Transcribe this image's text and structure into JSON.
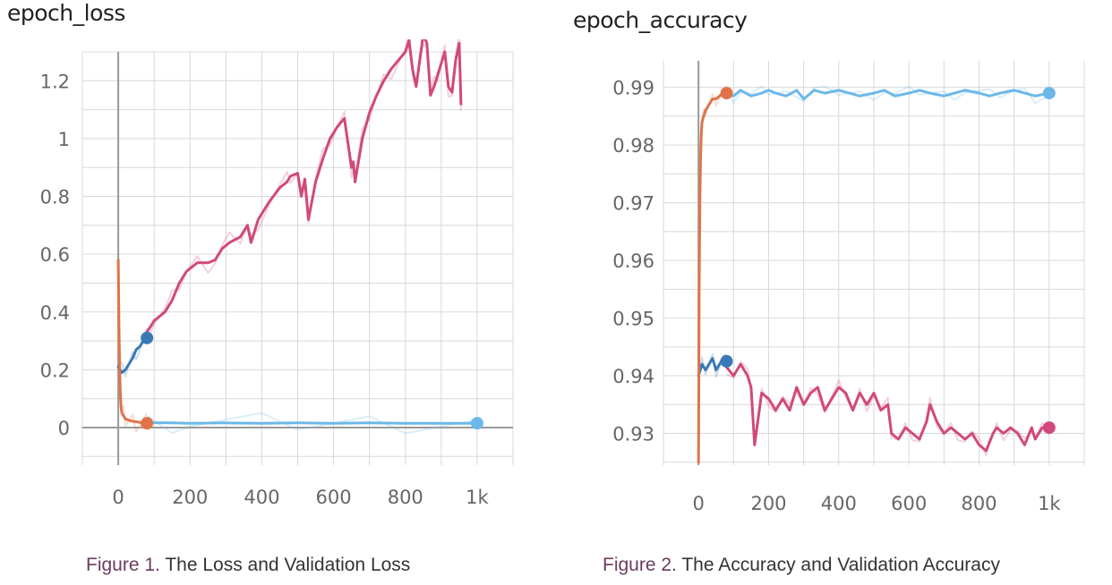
{
  "chart_data": [
    {
      "type": "line",
      "title": "epoch_loss",
      "caption_label": "Figure 1.",
      "caption_text": "The Loss and Validation Loss",
      "xlim": [
        -100,
        1100
      ],
      "ylim": [
        -0.13,
        1.3
      ],
      "x_ticks": [
        0,
        200,
        400,
        600,
        800,
        1000
      ],
      "x_tick_labels": [
        "0",
        "200",
        "400",
        "600",
        "800",
        "1k"
      ],
      "y_ticks": [
        0,
        0.2,
        0.4,
        0.6,
        0.8,
        1,
        1.2
      ],
      "y_tick_labels": [
        "0",
        "0.2",
        "0.4",
        "0.6",
        "0.8",
        "1",
        "1.2"
      ],
      "grid": true,
      "series": [
        {
          "color": "#d1497a",
          "end_marker": false,
          "x": [
            80,
            100,
            130,
            150,
            170,
            190,
            220,
            250,
            270,
            290,
            310,
            340,
            360,
            370,
            390,
            420,
            450,
            470,
            480,
            500,
            510,
            520,
            530,
            550,
            570,
            590,
            610,
            630,
            650,
            655,
            660,
            680,
            700,
            720,
            740,
            760,
            780,
            800,
            810,
            820,
            830,
            840,
            850,
            860,
            870,
            880,
            890,
            900,
            910,
            920,
            930,
            940,
            950,
            955
          ],
          "values": [
            0.33,
            0.37,
            0.4,
            0.44,
            0.5,
            0.54,
            0.57,
            0.57,
            0.58,
            0.62,
            0.64,
            0.66,
            0.7,
            0.64,
            0.72,
            0.78,
            0.83,
            0.85,
            0.87,
            0.88,
            0.8,
            0.86,
            0.72,
            0.85,
            0.93,
            1.0,
            1.04,
            1.07,
            0.9,
            0.92,
            0.85,
            1.0,
            1.09,
            1.15,
            1.2,
            1.24,
            1.27,
            1.3,
            1.34,
            1.24,
            1.18,
            1.27,
            1.36,
            1.33,
            1.15,
            1.18,
            1.22,
            1.26,
            1.3,
            1.18,
            1.16,
            1.27,
            1.33,
            1.12
          ]
        },
        {
          "color": "#3a78b6",
          "end_marker": true,
          "x": [
            0,
            10,
            20,
            30,
            40,
            50,
            60,
            70,
            80
          ],
          "values": [
            0.21,
            0.19,
            0.2,
            0.22,
            0.24,
            0.27,
            0.28,
            0.3,
            0.31
          ]
        },
        {
          "color": "#e0734a",
          "end_marker": true,
          "x": [
            0,
            2,
            4,
            6,
            8,
            10,
            15,
            20,
            30,
            40,
            50,
            60,
            70,
            80
          ],
          "values": [
            0.58,
            0.35,
            0.2,
            0.11,
            0.07,
            0.05,
            0.04,
            0.03,
            0.025,
            0.022,
            0.02,
            0.018,
            0.016,
            0.015
          ]
        },
        {
          "color": "#6cb8e8",
          "end_marker": true,
          "x": [
            80,
            150,
            200,
            300,
            400,
            500,
            600,
            700,
            800,
            900,
            1000
          ],
          "values": [
            0.017,
            0.016,
            0.015,
            0.016,
            0.015,
            0.016,
            0.015,
            0.016,
            0.015,
            0.015,
            0.015
          ]
        }
      ]
    },
    {
      "type": "line",
      "title": "epoch_accuracy",
      "caption_label": "Figure 2.",
      "caption_text": "The Accuracy and Validation Accuracy",
      "xlim": [
        -100,
        1100
      ],
      "ylim": [
        0.9245,
        0.9946
      ],
      "x_ticks": [
        0,
        200,
        400,
        600,
        800,
        1000
      ],
      "x_tick_labels": [
        "0",
        "200",
        "400",
        "600",
        "800",
        "1k"
      ],
      "y_ticks": [
        0.93,
        0.94,
        0.95,
        0.96,
        0.97,
        0.98,
        0.99
      ],
      "y_tick_labels": [
        "0.93",
        "0.94",
        "0.95",
        "0.96",
        "0.97",
        "0.98",
        "0.99"
      ],
      "grid": true,
      "series": [
        {
          "color": "#d1497a",
          "end_marker": true,
          "x": [
            80,
            100,
            120,
            140,
            150,
            160,
            180,
            200,
            220,
            240,
            260,
            280,
            300,
            320,
            340,
            360,
            380,
            400,
            420,
            440,
            460,
            480,
            500,
            520,
            540,
            550,
            570,
            590,
            610,
            630,
            650,
            660,
            680,
            700,
            720,
            740,
            760,
            780,
            800,
            820,
            840,
            850,
            870,
            890,
            910,
            930,
            950,
            960,
            980,
            1000
          ],
          "values": [
            0.9415,
            0.94,
            0.942,
            0.94,
            0.938,
            0.928,
            0.937,
            0.936,
            0.934,
            0.936,
            0.934,
            0.938,
            0.935,
            0.937,
            0.938,
            0.934,
            0.936,
            0.938,
            0.937,
            0.934,
            0.937,
            0.935,
            0.937,
            0.934,
            0.935,
            0.93,
            0.929,
            0.931,
            0.93,
            0.929,
            0.932,
            0.935,
            0.932,
            0.93,
            0.931,
            0.93,
            0.929,
            0.93,
            0.928,
            0.927,
            0.93,
            0.931,
            0.93,
            0.931,
            0.93,
            0.928,
            0.931,
            0.929,
            0.931,
            0.931
          ]
        },
        {
          "color": "#3a78b6",
          "end_marker": true,
          "x": [
            0,
            10,
            20,
            30,
            40,
            50,
            60,
            70,
            80
          ],
          "values": [
            0.94,
            0.942,
            0.941,
            0.942,
            0.943,
            0.941,
            0.942,
            0.943,
            0.9425
          ]
        },
        {
          "color": "#e0734a",
          "end_marker": true,
          "x": [
            0,
            2,
            4,
            6,
            8,
            10,
            15,
            20,
            30,
            40,
            50,
            60,
            70,
            80
          ],
          "values": [
            0.925,
            0.955,
            0.97,
            0.978,
            0.982,
            0.984,
            0.985,
            0.986,
            0.987,
            0.988,
            0.988,
            0.9885,
            0.989,
            0.989
          ]
        },
        {
          "color": "#6cb8e8",
          "end_marker": true,
          "x": [
            80,
            100,
            120,
            150,
            180,
            200,
            220,
            250,
            280,
            300,
            330,
            360,
            400,
            430,
            460,
            500,
            530,
            560,
            600,
            630,
            660,
            700,
            730,
            760,
            800,
            830,
            860,
            900,
            930,
            960,
            1000
          ],
          "values": [
            0.989,
            0.9885,
            0.9895,
            0.9885,
            0.989,
            0.9895,
            0.989,
            0.9885,
            0.9895,
            0.988,
            0.9895,
            0.989,
            0.9895,
            0.989,
            0.9885,
            0.989,
            0.9895,
            0.9885,
            0.989,
            0.9895,
            0.989,
            0.9885,
            0.989,
            0.9895,
            0.989,
            0.9885,
            0.989,
            0.9895,
            0.989,
            0.9885,
            0.989
          ]
        }
      ]
    }
  ]
}
